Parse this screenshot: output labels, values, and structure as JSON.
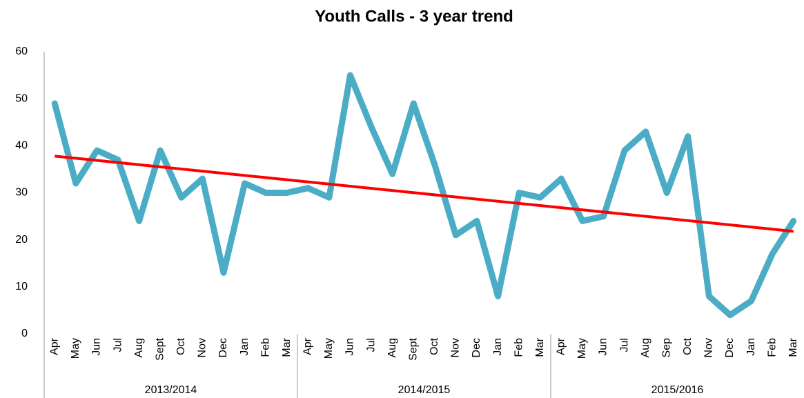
{
  "chart_data": {
    "type": "line",
    "title": "Youth Calls - 3 year trend",
    "categories": [
      "Apr",
      "May",
      "Jun",
      "Jul",
      "Aug",
      "Sept",
      "Oct",
      "Nov",
      "Dec",
      "Jan",
      "Feb",
      "Mar",
      "Apr",
      "May",
      "Jun",
      "Jul",
      "Aug",
      "Sept",
      "Oct",
      "Nov",
      "Dec",
      "Jan",
      "Feb",
      "Mar",
      "Apr",
      "May",
      "Jun",
      "Jul",
      "Aug",
      "Sep",
      "Oct",
      "Nov",
      "Dec",
      "Jan",
      "Feb",
      "Mar"
    ],
    "groups": [
      "2013/2014",
      "2014/2015",
      "2015/2016"
    ],
    "series": [
      {
        "color": "#4bacc6",
        "values": [
          49,
          32,
          39,
          37,
          24,
          39,
          29,
          33,
          13,
          32,
          30,
          30,
          31,
          29,
          55,
          44,
          34,
          49,
          36,
          21,
          24,
          8,
          30,
          29,
          33,
          24,
          25,
          39,
          43,
          30,
          42,
          8,
          4,
          7,
          17,
          24
        ]
      }
    ],
    "trendline": {
      "values": [
        37.8,
        21.8
      ],
      "color": "#ff0000"
    },
    "ylim": [
      0,
      60
    ],
    "yticks": [
      0,
      10,
      20,
      30,
      40,
      50,
      60
    ],
    "grid": false
  }
}
